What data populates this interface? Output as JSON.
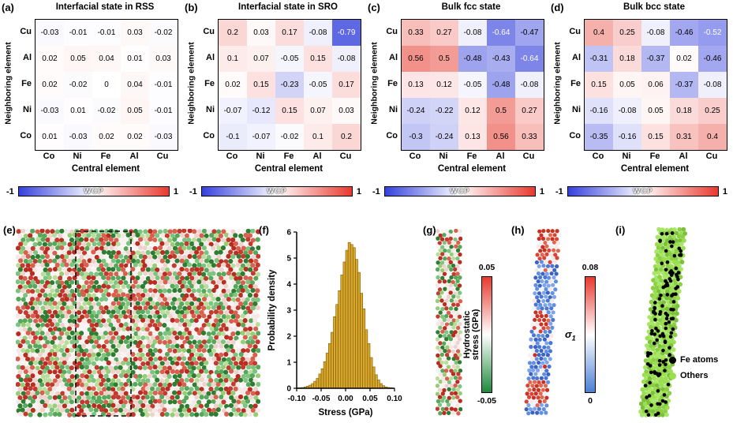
{
  "chart_data": [
    {
      "type": "heatmap",
      "panel": "(a)",
      "title": "Interfacial state in RSS",
      "xlabel": "Central element",
      "ylabel": "Neighboring element",
      "rows": [
        "Cu",
        "Al",
        "Fe",
        "Ni",
        "Co"
      ],
      "cols": [
        "Co",
        "Ni",
        "Fe",
        "Al",
        "Cu"
      ],
      "values": [
        [
          -0.03,
          -0.01,
          -0.01,
          0.03,
          -0.02
        ],
        [
          0.02,
          0.05,
          0.04,
          0.01,
          0.03
        ],
        [
          0.02,
          -0.02,
          0,
          0.04,
          -0.01
        ],
        [
          -0.03,
          0.01,
          -0.02,
          0.05,
          -0.01
        ],
        [
          0.01,
          -0.03,
          0.02,
          0.02,
          -0.03
        ]
      ],
      "vmin": -1,
      "vmax": 1,
      "colorbar": {
        "min": "-1",
        "max": "1",
        "label": "WCP"
      }
    },
    {
      "type": "heatmap",
      "panel": "(b)",
      "title": "Interfacial state in SRO",
      "xlabel": "Central element",
      "ylabel": "Neighboring element",
      "rows": [
        "Cu",
        "Al",
        "Fe",
        "Ni",
        "Co"
      ],
      "cols": [
        "Co",
        "Ni",
        "Fe",
        "Al",
        "Cu"
      ],
      "values": [
        [
          0.2,
          0.03,
          0.17,
          -0.08,
          -0.79
        ],
        [
          0.1,
          0.07,
          -0.05,
          0.15,
          -0.08
        ],
        [
          0.02,
          0.15,
          -0.23,
          -0.05,
          0.17
        ],
        [
          -0.07,
          -0.12,
          0.15,
          0.07,
          0.03
        ],
        [
          -0.1,
          -0.07,
          -0.02,
          0.1,
          0.2
        ]
      ],
      "vmin": -1,
      "vmax": 1,
      "colorbar": {
        "min": "-1",
        "max": "1",
        "label": "WCP"
      }
    },
    {
      "type": "heatmap",
      "panel": "(c)",
      "title": "Bulk fcc state",
      "xlabel": "Central element",
      "ylabel": "Neighboring element",
      "rows": [
        "Cu",
        "Al",
        "Fe",
        "Ni",
        "Co"
      ],
      "cols": [
        "Co",
        "Ni",
        "Fe",
        "Al",
        "Cu"
      ],
      "values": [
        [
          0.33,
          0.27,
          -0.08,
          -0.64,
          -0.47
        ],
        [
          0.56,
          0.5,
          -0.48,
          -0.43,
          -0.64
        ],
        [
          0.13,
          0.12,
          -0.05,
          -0.48,
          -0.08
        ],
        [
          -0.24,
          -0.22,
          0.12,
          0.5,
          0.27
        ],
        [
          -0.3,
          -0.24,
          0.13,
          0.56,
          0.33
        ]
      ],
      "vmin": -1,
      "vmax": 1,
      "colorbar": {
        "min": "-1",
        "max": "1",
        "label": "WCP"
      }
    },
    {
      "type": "heatmap",
      "panel": "(d)",
      "title": "Bulk bcc state",
      "xlabel": "Central element",
      "ylabel": "Neighboring element",
      "rows": [
        "Cu",
        "Al",
        "Fe",
        "Ni",
        "Co"
      ],
      "cols": [
        "Co",
        "Ni",
        "Fe",
        "Al",
        "Cu"
      ],
      "values": [
        [
          0.4,
          0.25,
          -0.08,
          -0.46,
          -0.52
        ],
        [
          -0.31,
          0.18,
          -0.37,
          0.02,
          -0.46
        ],
        [
          0.15,
          0.05,
          0.06,
          -0.37,
          -0.08
        ],
        [
          -0.16,
          -0.08,
          0.05,
          0.18,
          0.25
        ],
        [
          -0.35,
          -0.16,
          0.15,
          0.31,
          0.4
        ]
      ],
      "vmin": -1,
      "vmax": 1,
      "colorbar": {
        "min": "-1",
        "max": "1",
        "label": "WCP"
      }
    },
    {
      "type": "bar",
      "panel": "(f)",
      "title": "",
      "xlabel": "Stress (GPa)",
      "ylabel": "Probability density",
      "xlim": [
        -0.1,
        0.1
      ],
      "ylim": [
        0,
        6
      ],
      "xticks": [
        "-0.10",
        "-0.05",
        "0.00",
        "0.05",
        "0.10"
      ],
      "yticks": [
        "0",
        "1",
        "2",
        "3",
        "4",
        "5",
        "6"
      ],
      "bin_start": -0.1,
      "bin_width": 0.005,
      "values": [
        0.02,
        0.02,
        0.03,
        0.05,
        0.08,
        0.12,
        0.18,
        0.27,
        0.38,
        0.55,
        0.75,
        1.02,
        1.35,
        1.72,
        2.15,
        2.75,
        3.22,
        3.75,
        4.35,
        4.85,
        5.3,
        5.6,
        5.52,
        5.4,
        4.95,
        4.45,
        3.65,
        3.05,
        2.25,
        1.72,
        1.18,
        0.82,
        0.52,
        0.32,
        0.18,
        0.1,
        0.05,
        0.03,
        0.02,
        0.01
      ]
    }
  ],
  "panels": {
    "e": {
      "label": "(e)"
    },
    "f": {
      "label": "(f)"
    },
    "g": {
      "label": "(g)",
      "colorbar_top": "0.05",
      "colorbar_bottom": "-0.05",
      "axis_line1": "Hydrostatic",
      "axis_line2": "stress (GPa)"
    },
    "h": {
      "label": "(h)",
      "colorbar_top": "0.08",
      "colorbar_bottom": "0",
      "axis_symbol": "σ",
      "axis_sub": "1"
    },
    "i": {
      "label": "(i)",
      "legend": [
        {
          "label": "Fe atoms",
          "color": "#000000"
        },
        {
          "label": "Others",
          "color": "#99e04a"
        }
      ]
    }
  },
  "colors": {
    "wcp_negative": "#3540dc",
    "wcp_positive": "#e8392e",
    "hydro_top": "#e8392e",
    "hydro_bottom": "#1d8a3c",
    "sigma_top": "#e8392e",
    "sigma_bottom": "#4a7fd4",
    "bar_fill": "#d9a62e",
    "bar_edge": "#7a5c00"
  }
}
